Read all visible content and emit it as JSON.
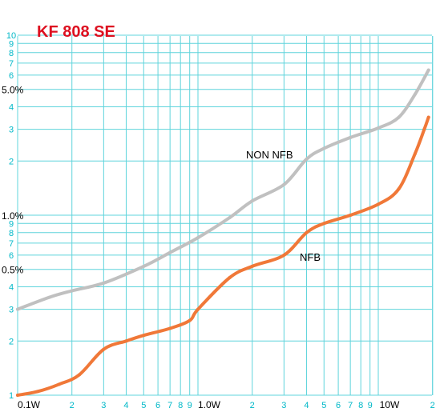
{
  "chart_data": {
    "type": "line",
    "title": "KF 808 SE",
    "xscale": "log",
    "yscale": "log",
    "xlim": [
      0.1,
      20
    ],
    "ylim": [
      0.1,
      6.0
    ],
    "grid": true,
    "x_major_labels": [
      "0.1W",
      "1.0W",
      "10W"
    ],
    "x_minor_labels": [
      "2",
      "3",
      "4",
      "5",
      "6",
      "7",
      "8",
      "9",
      "2",
      "3",
      "4",
      "5",
      "6",
      "7",
      "8",
      "9",
      "2"
    ],
    "y_decade_ticks": [
      "1",
      "2",
      "3",
      "4",
      "5",
      "6",
      "7",
      "8",
      "9",
      "10"
    ],
    "y_percent_labels": [
      "0.5%",
      "1.0%",
      "5.0%"
    ],
    "series": [
      {
        "name": "NON NFB",
        "color": "#c0c0c0",
        "x": [
          0.1,
          0.15,
          0.2,
          0.3,
          0.5,
          0.7,
          1.0,
          1.5,
          2.0,
          3.0,
          4.0,
          5.0,
          7.0,
          10.0,
          13.0,
          16.0,
          19.0
        ],
        "y": [
          0.3,
          0.35,
          0.38,
          0.42,
          0.52,
          0.62,
          0.75,
          0.97,
          1.2,
          1.48,
          2.05,
          2.35,
          2.7,
          3.05,
          3.5,
          4.7,
          6.4
        ]
      },
      {
        "name": "NFB",
        "color": "#f07838",
        "x": [
          0.1,
          0.13,
          0.17,
          0.22,
          0.3,
          0.4,
          0.5,
          0.7,
          0.9,
          1.0,
          1.5,
          2.0,
          3.0,
          4.0,
          5.0,
          7.0,
          10.0,
          13.0,
          16.0,
          18.0,
          19.0
        ],
        "y": [
          0.1,
          0.105,
          0.115,
          0.13,
          0.18,
          0.2,
          0.215,
          0.235,
          0.26,
          0.3,
          0.45,
          0.52,
          0.6,
          0.8,
          0.9,
          1.0,
          1.15,
          1.4,
          2.2,
          3.0,
          3.5
        ]
      }
    ]
  }
}
